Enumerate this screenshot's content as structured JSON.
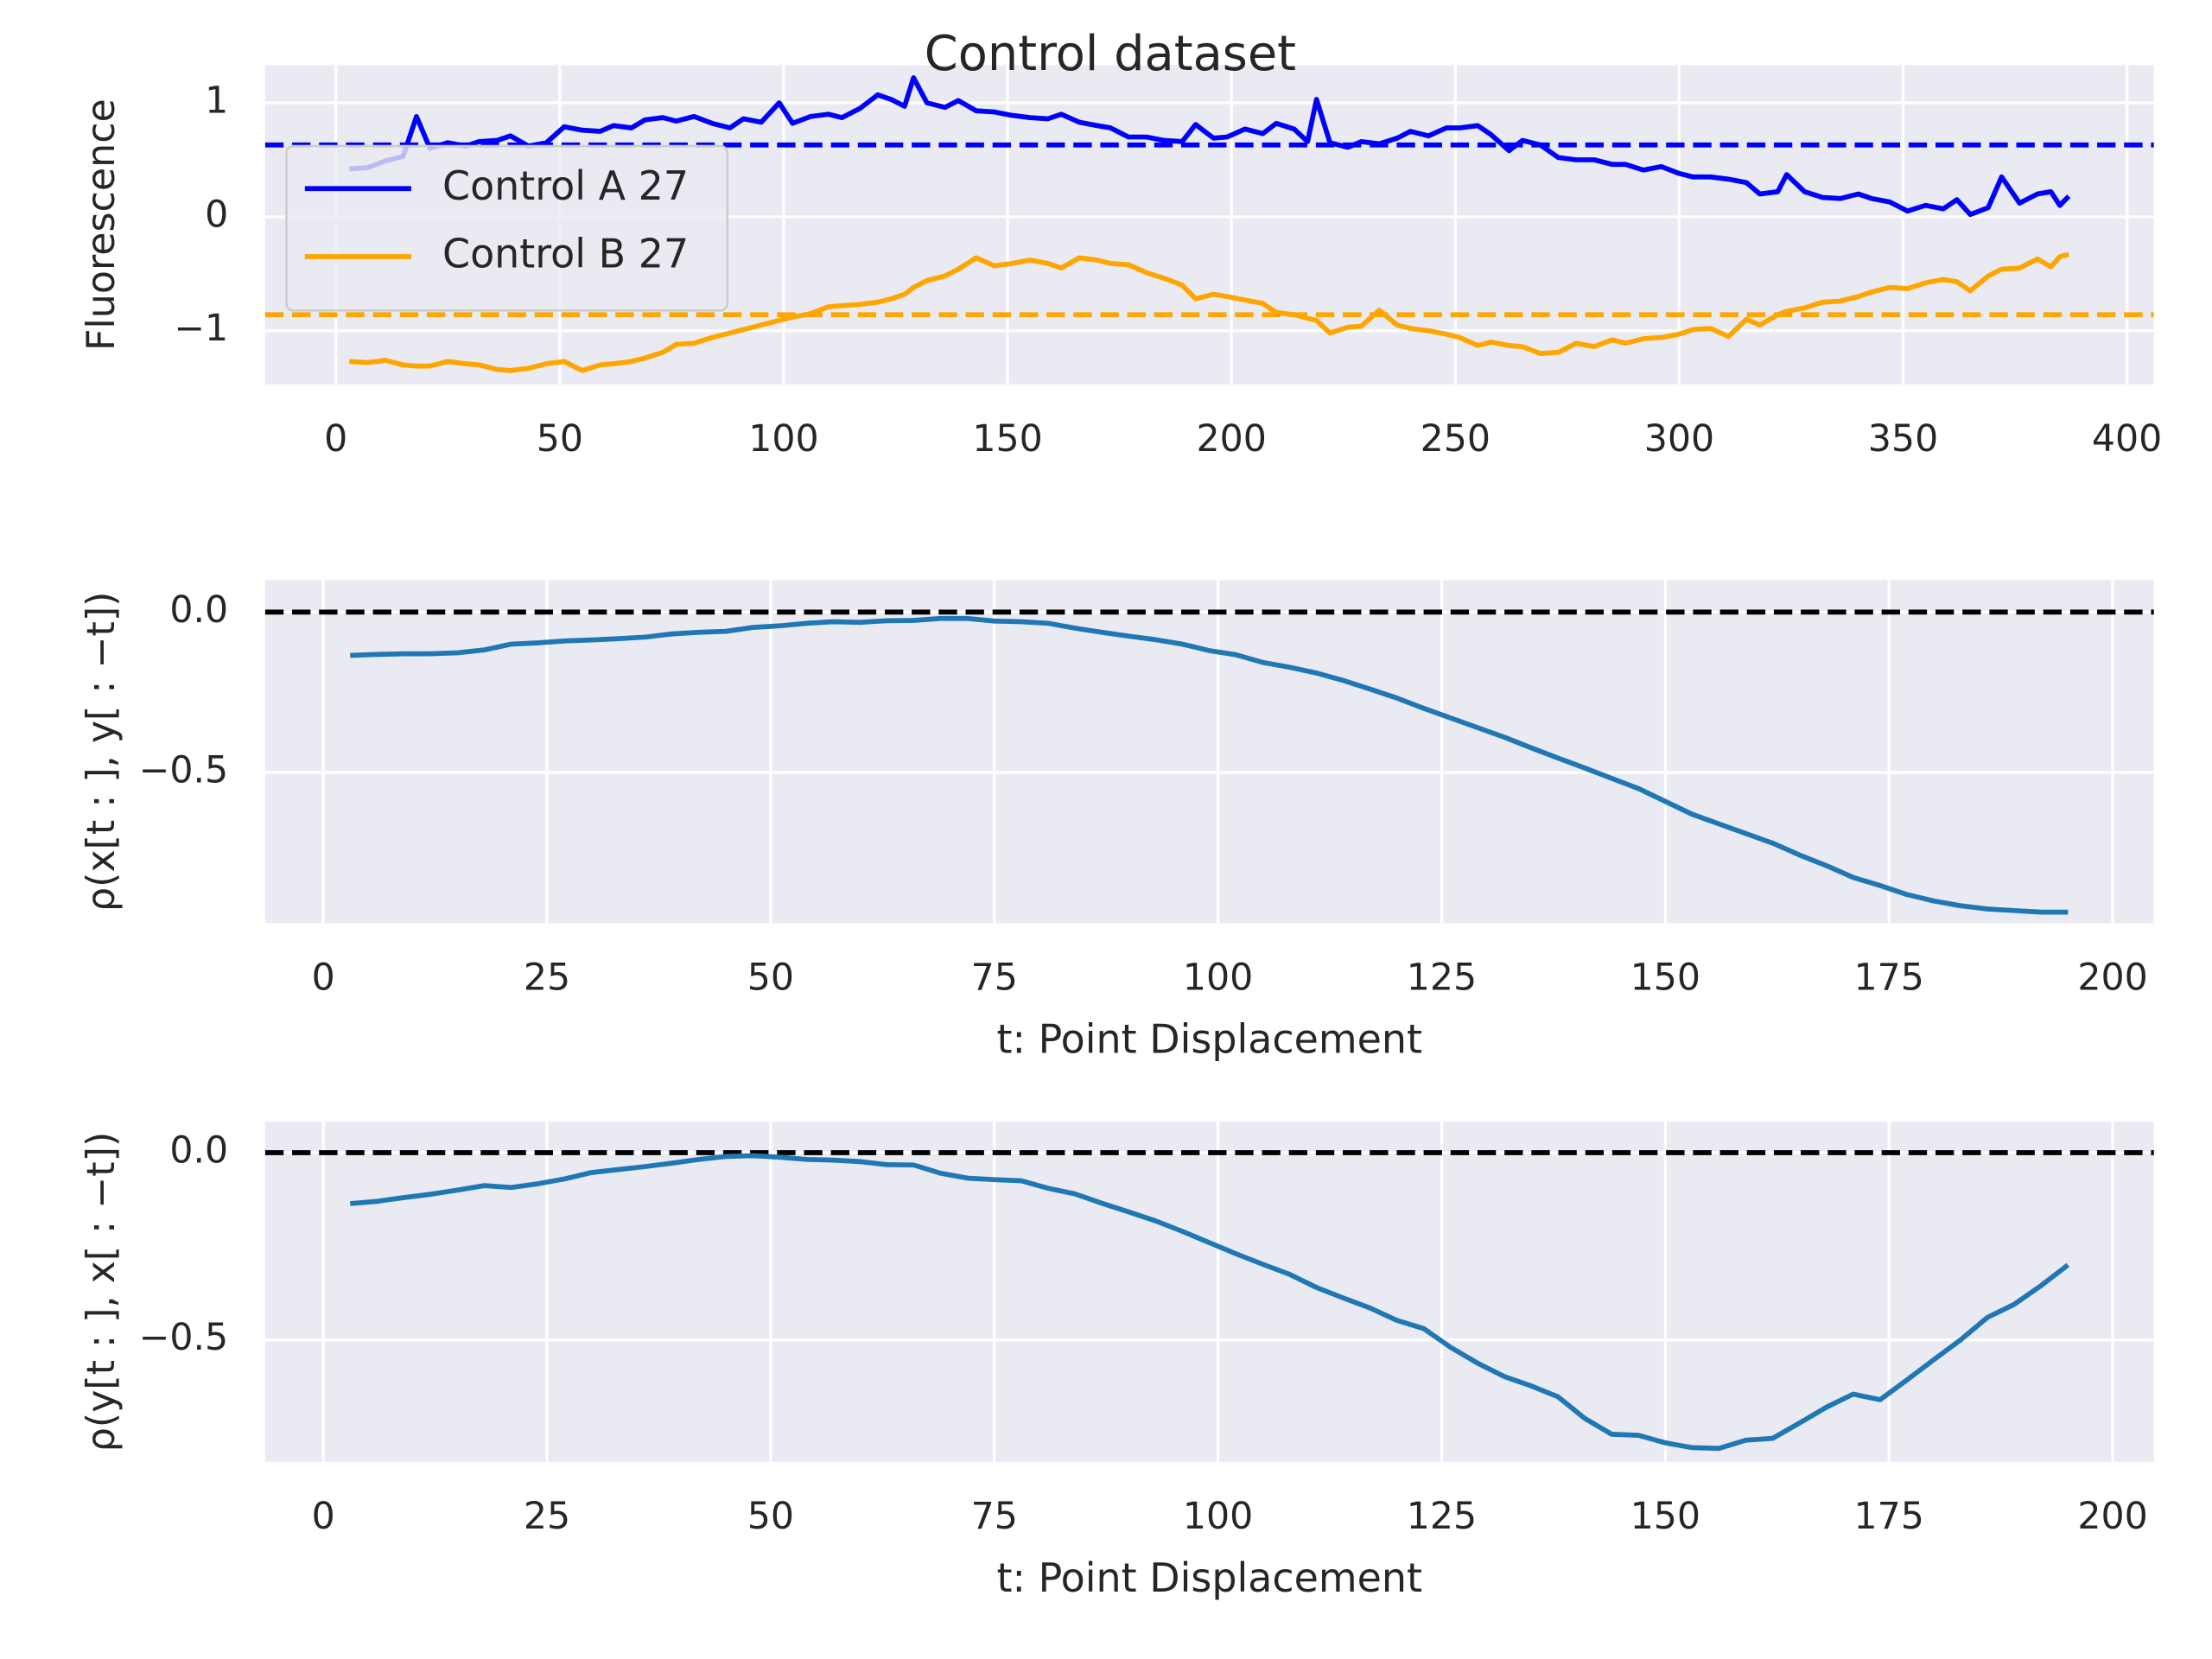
{
  "chart_data": [
    {
      "type": "line",
      "title": "Control dataset",
      "ylabel": "Fluorescence",
      "x": [
        3,
        7,
        11,
        15,
        18,
        21,
        25,
        29,
        32,
        36,
        39,
        43,
        47,
        51,
        55,
        59,
        62,
        66,
        69,
        73,
        76,
        80,
        84,
        88,
        91,
        95,
        99,
        102,
        106,
        110,
        113,
        117,
        121,
        124,
        127,
        129,
        132,
        136,
        139,
        143,
        147,
        151,
        155,
        159,
        162,
        166,
        170,
        173,
        177,
        181,
        185,
        189,
        192,
        196,
        199,
        203,
        207,
        210,
        214,
        217,
        219,
        222,
        226,
        229,
        233,
        237,
        240,
        244,
        248,
        251,
        255,
        258,
        262,
        265,
        269,
        273,
        277,
        281,
        285,
        288,
        292,
        296,
        300,
        303,
        307,
        311,
        315,
        318,
        322,
        324,
        328,
        332,
        336,
        340,
        343,
        347,
        351,
        355,
        359,
        362,
        365,
        369,
        372,
        376,
        380,
        383,
        385,
        387
      ],
      "series": [
        {
          "name": "Control A 27",
          "color": "#0000ff",
          "values": [
            0.42,
            0.43,
            0.49,
            0.53,
            0.88,
            0.6,
            0.65,
            0.62,
            0.66,
            0.67,
            0.71,
            0.62,
            0.65,
            0.79,
            0.76,
            0.75,
            0.8,
            0.78,
            0.85,
            0.87,
            0.84,
            0.88,
            0.82,
            0.78,
            0.86,
            0.83,
            1.0,
            0.82,
            0.88,
            0.9,
            0.87,
            0.95,
            1.07,
            1.03,
            0.97,
            1.22,
            1.0,
            0.96,
            1.02,
            0.93,
            0.92,
            0.89,
            0.87,
            0.86,
            0.9,
            0.83,
            0.8,
            0.78,
            0.7,
            0.7,
            0.67,
            0.66,
            0.81,
            0.69,
            0.7,
            0.77,
            0.73,
            0.82,
            0.77,
            0.66,
            1.03,
            0.65,
            0.61,
            0.66,
            0.64,
            0.69,
            0.75,
            0.71,
            0.78,
            0.78,
            0.8,
            0.72,
            0.58,
            0.67,
            0.63,
            0.52,
            0.5,
            0.5,
            0.46,
            0.46,
            0.41,
            0.44,
            0.38,
            0.35,
            0.35,
            0.33,
            0.3,
            0.2,
            0.22,
            0.37,
            0.22,
            0.17,
            0.16,
            0.2,
            0.16,
            0.13,
            0.05,
            0.1,
            0.07,
            0.15,
            0.02,
            0.08,
            0.35,
            0.12,
            0.2,
            0.22,
            0.1,
            0.18
          ]
        },
        {
          "name": "Control B 27",
          "color": "#ffa500",
          "values": [
            -1.27,
            -1.28,
            -1.26,
            -1.3,
            -1.31,
            -1.31,
            -1.27,
            -1.29,
            -1.3,
            -1.34,
            -1.35,
            -1.33,
            -1.29,
            -1.27,
            -1.35,
            -1.3,
            -1.29,
            -1.27,
            -1.24,
            -1.19,
            -1.12,
            -1.11,
            -1.06,
            -1.02,
            -0.99,
            -0.95,
            -0.91,
            -0.88,
            -0.85,
            -0.79,
            -0.78,
            -0.77,
            -0.75,
            -0.72,
            -0.68,
            -0.62,
            -0.56,
            -0.52,
            -0.46,
            -0.36,
            -0.43,
            -0.41,
            -0.38,
            -0.41,
            -0.45,
            -0.36,
            -0.38,
            -0.41,
            -0.42,
            -0.49,
            -0.54,
            -0.6,
            -0.72,
            -0.68,
            -0.7,
            -0.73,
            -0.76,
            -0.84,
            -0.86,
            -0.89,
            -0.91,
            -1.02,
            -0.97,
            -0.96,
            -0.82,
            -0.95,
            -0.98,
            -1.0,
            -1.03,
            -1.06,
            -1.13,
            -1.1,
            -1.13,
            -1.14,
            -1.2,
            -1.19,
            -1.11,
            -1.14,
            -1.08,
            -1.11,
            -1.07,
            -1.06,
            -1.03,
            -0.99,
            -0.98,
            -1.05,
            -0.9,
            -0.95,
            -0.86,
            -0.83,
            -0.8,
            -0.75,
            -0.74,
            -0.7,
            -0.66,
            -0.62,
            -0.63,
            -0.58,
            -0.55,
            -0.57,
            -0.65,
            -0.52,
            -0.46,
            -0.45,
            -0.37,
            -0.44,
            -0.35,
            -0.33
          ]
        }
      ],
      "reference_lines": [
        {
          "value": 0.63,
          "color": "#0000ff"
        },
        {
          "value": -0.86,
          "color": "#ffa500"
        }
      ],
      "xlim": [
        -15.8,
        406
      ],
      "ylim": [
        -1.47,
        1.33
      ],
      "xticks": [
        0,
        50,
        100,
        150,
        200,
        250,
        300,
        350,
        400
      ],
      "yticks": [
        {
          "value": -1,
          "label": "−1"
        },
        0,
        1
      ],
      "grid": true,
      "legend": "upper left"
    },
    {
      "type": "line",
      "ylabel": "ρ(x[t : ], y[ : −t])",
      "xlabel": "t: Point Displacement",
      "x": [
        3,
        6,
        9,
        12,
        15,
        18,
        21,
        24,
        27,
        30,
        33,
        36,
        39,
        42,
        45,
        48,
        51,
        54,
        57,
        60,
        63,
        66,
        69,
        72,
        75,
        78,
        81,
        84,
        87,
        90,
        93,
        96,
        99,
        102,
        105,
        108,
        111,
        114,
        117,
        120,
        123,
        126,
        129,
        132,
        135,
        138,
        141,
        144,
        147,
        150,
        153,
        156,
        159,
        162,
        165,
        168,
        171,
        174,
        177,
        180,
        183,
        186,
        189,
        192,
        195
      ],
      "series": [
        {
          "color": "#1f77b4",
          "values": [
            -0.135,
            -0.132,
            -0.13,
            -0.13,
            -0.127,
            -0.118,
            -0.1,
            -0.096,
            -0.09,
            -0.087,
            -0.083,
            -0.078,
            -0.068,
            -0.063,
            -0.06,
            -0.048,
            -0.043,
            -0.035,
            -0.03,
            -0.032,
            -0.027,
            -0.026,
            -0.02,
            -0.02,
            -0.028,
            -0.03,
            -0.035,
            -0.05,
            -0.063,
            -0.075,
            -0.086,
            -0.1,
            -0.12,
            -0.133,
            -0.157,
            -0.172,
            -0.19,
            -0.213,
            -0.24,
            -0.268,
            -0.3,
            -0.33,
            -0.36,
            -0.39,
            -0.423,
            -0.455,
            -0.486,
            -0.518,
            -0.55,
            -0.59,
            -0.63,
            -0.66,
            -0.69,
            -0.72,
            -0.757,
            -0.79,
            -0.827,
            -0.852,
            -0.88,
            -0.9,
            -0.915,
            -0.925,
            -0.93,
            -0.935,
            -0.935
          ]
        }
      ],
      "reference_lines": [
        {
          "value": 0,
          "color": "#000000"
        }
      ],
      "xlim": [
        -6.5,
        204.6
      ],
      "ylim": [
        -0.969,
        0.1
      ],
      "xticks": [
        0,
        25,
        50,
        75,
        100,
        125,
        150,
        175,
        200
      ],
      "yticks": [
        {
          "value": -0.5,
          "label": "−0.5"
        },
        {
          "value": 0,
          "label": "0.0"
        }
      ],
      "grid": true
    },
    {
      "type": "line",
      "ylabel": "ρ(y[t : ], x[ : −t])",
      "xlabel": "t: Point Displacement",
      "x": [
        3,
        6,
        9,
        12,
        15,
        18,
        21,
        24,
        27,
        30,
        33,
        36,
        39,
        42,
        45,
        48,
        51,
        54,
        57,
        60,
        63,
        66,
        69,
        72,
        75,
        78,
        81,
        84,
        87,
        90,
        93,
        96,
        99,
        102,
        105,
        108,
        111,
        114,
        117,
        120,
        123,
        126,
        129,
        132,
        135,
        138,
        141,
        144,
        147,
        150,
        153,
        156,
        159,
        162,
        165,
        168,
        171,
        174,
        177,
        180,
        183,
        186,
        189,
        192,
        195
      ],
      "series": [
        {
          "color": "#1f77b4",
          "values": [
            -0.136,
            -0.13,
            -0.12,
            -0.111,
            -0.1,
            -0.088,
            -0.093,
            -0.083,
            -0.07,
            -0.053,
            -0.045,
            -0.037,
            -0.028,
            -0.018,
            -0.01,
            -0.008,
            -0.012,
            -0.018,
            -0.02,
            -0.024,
            -0.032,
            -0.033,
            -0.055,
            -0.068,
            -0.072,
            -0.075,
            -0.095,
            -0.11,
            -0.135,
            -0.158,
            -0.182,
            -0.21,
            -0.24,
            -0.27,
            -0.298,
            -0.325,
            -0.36,
            -0.388,
            -0.415,
            -0.448,
            -0.47,
            -0.52,
            -0.562,
            -0.598,
            -0.623,
            -0.652,
            -0.71,
            -0.752,
            -0.755,
            -0.775,
            -0.788,
            -0.79,
            -0.768,
            -0.763,
            -0.722,
            -0.68,
            -0.645,
            -0.66,
            -0.607,
            -0.553,
            -0.5,
            -0.44,
            -0.405,
            -0.355,
            -0.3
          ]
        }
      ],
      "reference_lines": [
        {
          "value": 0,
          "color": "#000000"
        }
      ],
      "xlim": [
        -6.5,
        204.6
      ],
      "ylim": [
        -0.826,
        0.083
      ],
      "xticks": [
        0,
        25,
        50,
        75,
        100,
        125,
        150,
        175,
        200
      ],
      "yticks": [
        {
          "value": -0.5,
          "label": "−0.5"
        },
        {
          "value": 0,
          "label": "0.0"
        }
      ],
      "grid": true
    }
  ]
}
